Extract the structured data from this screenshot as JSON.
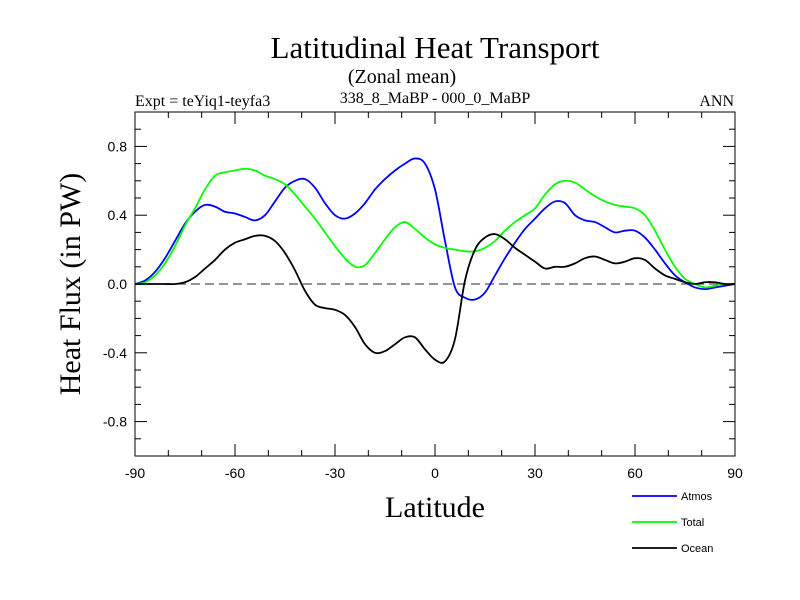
{
  "chart_data": {
    "type": "line",
    "title": "Latitudinal Heat Transport",
    "subtitle": "(Zonal mean)",
    "left_label": "Expt = teYiq1-teyfa3",
    "center_label": "338_8_MaBP - 000_0_MaBP",
    "right_label": "ANN",
    "xlabel": "Latitude",
    "ylabel": "Heat Flux (in PW)",
    "xlim": [
      -90,
      90
    ],
    "ylim": [
      -1.0,
      1.0
    ],
    "x_ticks": [
      -90,
      -60,
      -30,
      0,
      30,
      60,
      90
    ],
    "x_tick_labels": [
      "-90",
      "-60",
      "-30",
      "0",
      "30",
      "60",
      "90"
    ],
    "y_ticks": [
      -0.8,
      -0.4,
      0.0,
      0.4,
      0.8
    ],
    "y_tick_labels": [
      "-0.8",
      "-0.4",
      "0.0",
      "0.4",
      "0.8"
    ],
    "zero_line": true,
    "series": [
      {
        "name": "Atmos",
        "color": "#0000ff",
        "x": [
          -90,
          -87,
          -84,
          -81,
          -78,
          -75,
          -72,
          -69,
          -66,
          -63,
          -60,
          -57,
          -54,
          -51,
          -48,
          -45,
          -42,
          -39,
          -36,
          -33,
          -30,
          -27,
          -24,
          -21,
          -18,
          -15,
          -12,
          -9,
          -6,
          -3,
          0,
          3,
          6,
          9,
          12,
          15,
          18,
          21,
          24,
          27,
          30,
          33,
          36,
          39,
          42,
          45,
          48,
          51,
          54,
          57,
          60,
          63,
          66,
          69,
          72,
          75,
          78,
          81,
          84,
          87,
          90
        ],
        "y": [
          0.0,
          0.02,
          0.07,
          0.15,
          0.25,
          0.35,
          0.42,
          0.46,
          0.45,
          0.42,
          0.41,
          0.39,
          0.37,
          0.4,
          0.48,
          0.56,
          0.6,
          0.61,
          0.56,
          0.47,
          0.4,
          0.38,
          0.41,
          0.47,
          0.55,
          0.61,
          0.66,
          0.7,
          0.73,
          0.7,
          0.55,
          0.25,
          -0.02,
          -0.08,
          -0.09,
          -0.05,
          0.05,
          0.15,
          0.24,
          0.32,
          0.38,
          0.44,
          0.48,
          0.47,
          0.4,
          0.37,
          0.36,
          0.33,
          0.3,
          0.31,
          0.31,
          0.27,
          0.2,
          0.12,
          0.05,
          0.01,
          -0.02,
          -0.03,
          -0.02,
          -0.01,
          0.0
        ]
      },
      {
        "name": "Total",
        "color": "#00ff00",
        "x": [
          -90,
          -87,
          -84,
          -81,
          -78,
          -75,
          -72,
          -69,
          -66,
          -63,
          -60,
          -57,
          -54,
          -51,
          -48,
          -45,
          -42,
          -39,
          -36,
          -33,
          -30,
          -27,
          -24,
          -21,
          -18,
          -15,
          -12,
          -9,
          -6,
          -3,
          0,
          3,
          6,
          9,
          12,
          15,
          18,
          21,
          24,
          27,
          30,
          33,
          36,
          39,
          42,
          45,
          48,
          51,
          54,
          57,
          60,
          63,
          66,
          69,
          72,
          75,
          78,
          81,
          84,
          87,
          90
        ],
        "y": [
          0.0,
          0.01,
          0.05,
          0.12,
          0.22,
          0.34,
          0.44,
          0.55,
          0.63,
          0.65,
          0.66,
          0.67,
          0.66,
          0.63,
          0.61,
          0.58,
          0.52,
          0.45,
          0.38,
          0.3,
          0.22,
          0.15,
          0.1,
          0.11,
          0.18,
          0.26,
          0.33,
          0.36,
          0.32,
          0.27,
          0.23,
          0.21,
          0.2,
          0.19,
          0.19,
          0.21,
          0.25,
          0.31,
          0.36,
          0.4,
          0.44,
          0.52,
          0.58,
          0.6,
          0.59,
          0.55,
          0.51,
          0.48,
          0.46,
          0.45,
          0.44,
          0.4,
          0.31,
          0.2,
          0.1,
          0.03,
          0.0,
          -0.02,
          -0.01,
          0.0,
          0.0
        ]
      },
      {
        "name": "Ocean",
        "color": "#000000",
        "x": [
          -90,
          -87,
          -84,
          -81,
          -78,
          -75,
          -72,
          -69,
          -66,
          -63,
          -60,
          -57,
          -54,
          -51,
          -48,
          -45,
          -42,
          -39,
          -36,
          -33,
          -30,
          -27,
          -24,
          -21,
          -18,
          -15,
          -12,
          -9,
          -6,
          -3,
          0,
          3,
          6,
          9,
          12,
          15,
          18,
          21,
          24,
          27,
          30,
          33,
          36,
          39,
          42,
          45,
          48,
          51,
          54,
          57,
          60,
          63,
          66,
          69,
          72,
          75,
          78,
          81,
          84,
          87,
          90
        ],
        "y": [
          0.0,
          0.0,
          0.0,
          0.0,
          0.0,
          0.01,
          0.04,
          0.09,
          0.14,
          0.2,
          0.24,
          0.26,
          0.28,
          0.28,
          0.25,
          0.18,
          0.08,
          -0.04,
          -0.12,
          -0.14,
          -0.15,
          -0.18,
          -0.25,
          -0.35,
          -0.4,
          -0.39,
          -0.35,
          -0.31,
          -0.31,
          -0.38,
          -0.44,
          -0.45,
          -0.32,
          0.02,
          0.2,
          0.27,
          0.29,
          0.26,
          0.21,
          0.17,
          0.13,
          0.09,
          0.1,
          0.1,
          0.12,
          0.15,
          0.16,
          0.14,
          0.12,
          0.13,
          0.15,
          0.14,
          0.09,
          0.05,
          0.03,
          0.01,
          0.0,
          0.01,
          0.01,
          0.0,
          0.0
        ]
      }
    ],
    "legend": {
      "placement": "bottom-right",
      "entries": [
        "Atmos",
        "Total",
        "Ocean"
      ]
    }
  }
}
